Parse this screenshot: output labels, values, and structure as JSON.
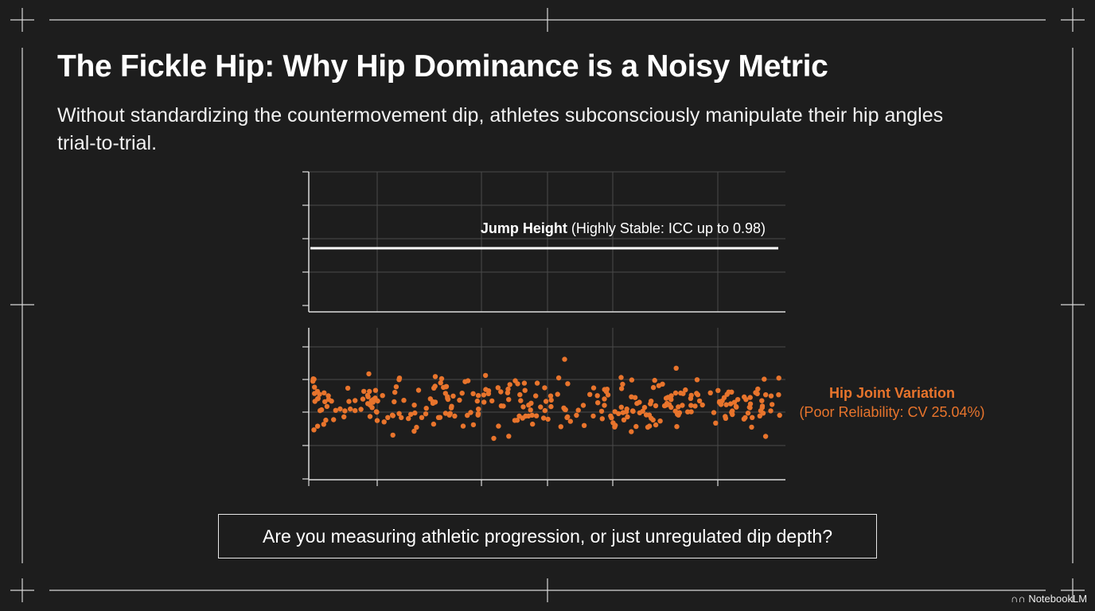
{
  "header": {
    "title": "The Fickle Hip: Why Hip Dominance is a Noisy Metric",
    "subtitle": "Without standardizing the countermovement dip, athletes subconsciously manipulate their hip angles trial-to-trial."
  },
  "figure": {
    "stable_label": {
      "bold": "Jump Height",
      "rest": "(Highly Stable: ICC up to 0.98)"
    },
    "variation_label": {
      "title": "Hip Joint Variation",
      "detail": "(Poor Reliability: CV 25.04%)"
    }
  },
  "callout": "Are you measuring athletic progression, or just unregulated dip depth?",
  "watermark": "NotebookLM"
}
